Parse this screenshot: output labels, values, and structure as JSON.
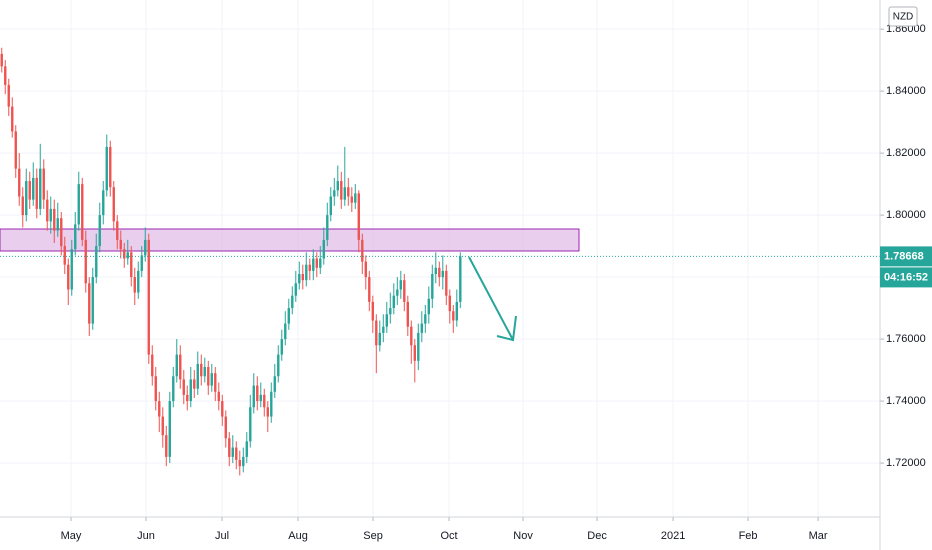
{
  "chart_data": {
    "type": "candlestick",
    "currency": "NZD",
    "up_color": "#26a69a",
    "down_color": "#ef5350",
    "xlim": [
      -0.5,
      250.9
    ],
    "xticks": [
      {
        "value": 19.79,
        "label": "May"
      },
      {
        "value": 41.2,
        "label": "Jun"
      },
      {
        "value": 62.93,
        "label": "Jul"
      },
      {
        "value": 84.64,
        "label": "Aug"
      },
      {
        "value": 106.07,
        "label": "Sep"
      },
      {
        "value": 127.79,
        "label": "Oct"
      },
      {
        "value": 148.93,
        "label": "Nov"
      },
      {
        "value": 170.07,
        "label": "Dec"
      },
      {
        "value": 191.79,
        "label": "2021"
      },
      {
        "value": 213.21,
        "label": "Feb"
      },
      {
        "value": 233.21,
        "label": "Mar"
      }
    ],
    "ylim": [
      1.7026,
      1.8694
    ],
    "yticks": [
      {
        "value": 1.86,
        "label": "1.86000"
      },
      {
        "value": 1.84,
        "label": "1.84000"
      },
      {
        "value": 1.82,
        "label": "1.82000"
      },
      {
        "value": 1.8,
        "label": "1.80000"
      },
      {
        "value": 1.78,
        "label": "1.78000"
      },
      {
        "value": 1.76,
        "label": "1.76000"
      },
      {
        "value": 1.74,
        "label": "1.74000"
      },
      {
        "value": 1.72,
        "label": "1.72000"
      }
    ],
    "grid": true,
    "last_price": 1.78668,
    "countdown": "04:16:52",
    "open": [
      1.852,
      1.848,
      1.842,
      1.835,
      1.827,
      1.815,
      1.806,
      1.8,
      1.811,
      1.805,
      1.812,
      1.802,
      1.815,
      1.805,
      1.798,
      1.802,
      1.795,
      1.799,
      1.79,
      1.784,
      1.776,
      1.789,
      1.797,
      1.81,
      1.792,
      1.778,
      1.765,
      1.78,
      1.79,
      1.8,
      1.808,
      1.822,
      1.809,
      1.798,
      1.792,
      1.789,
      1.786,
      1.788,
      1.78,
      1.775,
      1.782,
      1.787,
      1.792,
      1.755,
      1.748,
      1.74,
      1.735,
      1.729,
      1.722,
      1.74,
      1.748,
      1.755,
      1.747,
      1.742,
      1.74,
      1.747,
      1.744,
      1.752,
      1.748,
      1.751,
      1.745,
      1.749,
      1.743,
      1.74,
      1.735,
      1.728,
      1.722,
      1.725,
      1.721,
      1.719,
      1.722,
      1.727,
      1.738,
      1.745,
      1.74,
      1.742,
      1.738,
      1.735,
      1.743,
      1.748,
      1.755,
      1.76,
      1.765,
      1.77,
      1.774,
      1.778,
      1.781,
      1.779,
      1.784,
      1.782,
      1.786,
      1.783,
      1.786,
      1.792,
      1.8,
      1.806,
      1.808,
      1.811,
      1.805,
      1.809,
      1.806,
      1.804,
      1.807,
      1.792,
      1.785,
      1.78,
      1.772,
      1.766,
      1.758,
      1.762,
      1.764,
      1.768,
      1.77,
      1.774,
      1.776,
      1.779,
      1.772,
      1.764,
      1.758,
      1.753,
      1.762,
      1.765,
      1.768,
      1.773,
      1.781,
      1.783,
      1.78,
      1.782,
      1.774,
      1.769,
      1.766,
      1.772
    ],
    "high": [
      1.854,
      1.85,
      1.844,
      1.838,
      1.829,
      1.82,
      1.809,
      1.815,
      1.814,
      1.817,
      1.815,
      1.823,
      1.818,
      1.808,
      1.806,
      1.805,
      1.804,
      1.801,
      1.793,
      1.786,
      1.792,
      1.801,
      1.814,
      1.812,
      1.795,
      1.78,
      1.783,
      1.794,
      1.804,
      1.811,
      1.826,
      1.824,
      1.811,
      1.8,
      1.795,
      1.791,
      1.792,
      1.79,
      1.783,
      1.785,
      1.79,
      1.796,
      1.794,
      1.758,
      1.751,
      1.743,
      1.738,
      1.732,
      1.743,
      1.751,
      1.76,
      1.758,
      1.75,
      1.745,
      1.751,
      1.75,
      1.756,
      1.755,
      1.754,
      1.753,
      1.752,
      1.751,
      1.746,
      1.742,
      1.737,
      1.73,
      1.729,
      1.727,
      1.724,
      1.725,
      1.73,
      1.742,
      1.749,
      1.748,
      1.746,
      1.744,
      1.74,
      1.746,
      1.752,
      1.758,
      1.763,
      1.769,
      1.773,
      1.777,
      1.782,
      1.785,
      1.784,
      1.788,
      1.786,
      1.789,
      1.788,
      1.79,
      1.796,
      1.804,
      1.809,
      1.812,
      1.816,
      1.814,
      1.822,
      1.812,
      1.809,
      1.81,
      1.808,
      1.794,
      1.787,
      1.782,
      1.774,
      1.768,
      1.766,
      1.768,
      1.772,
      1.775,
      1.778,
      1.78,
      1.782,
      1.781,
      1.774,
      1.766,
      1.76,
      1.765,
      1.769,
      1.771,
      1.777,
      1.784,
      1.788,
      1.785,
      1.787,
      1.784,
      1.776,
      1.771,
      1.776,
      1.788
    ],
    "low": [
      1.846,
      1.839,
      1.832,
      1.825,
      1.812,
      1.803,
      1.796,
      1.798,
      1.802,
      1.803,
      1.799,
      1.8,
      1.802,
      1.795,
      1.794,
      1.791,
      1.793,
      1.787,
      1.781,
      1.771,
      1.774,
      1.787,
      1.795,
      1.79,
      1.775,
      1.761,
      1.763,
      1.778,
      1.788,
      1.797,
      1.806,
      1.806,
      1.795,
      1.789,
      1.786,
      1.783,
      1.784,
      1.777,
      1.771,
      1.773,
      1.78,
      1.785,
      1.752,
      1.745,
      1.737,
      1.73,
      1.725,
      1.719,
      1.72,
      1.738,
      1.746,
      1.744,
      1.739,
      1.737,
      1.738,
      1.741,
      1.742,
      1.745,
      1.746,
      1.742,
      1.743,
      1.74,
      1.737,
      1.732,
      1.725,
      1.719,
      1.72,
      1.718,
      1.716,
      1.717,
      1.72,
      1.725,
      1.736,
      1.737,
      1.738,
      1.735,
      1.73,
      1.733,
      1.741,
      1.746,
      1.753,
      1.758,
      1.763,
      1.768,
      1.772,
      1.776,
      1.776,
      1.777,
      1.779,
      1.779,
      1.78,
      1.781,
      1.784,
      1.79,
      1.798,
      1.803,
      1.806,
      1.802,
      1.803,
      1.803,
      1.801,
      1.802,
      1.788,
      1.781,
      1.776,
      1.769,
      1.762,
      1.749,
      1.756,
      1.759,
      1.762,
      1.765,
      1.768,
      1.771,
      1.773,
      1.769,
      1.761,
      1.752,
      1.746,
      1.75,
      1.759,
      1.762,
      1.765,
      1.77,
      1.778,
      1.777,
      1.776,
      1.771,
      1.765,
      1.762,
      1.764,
      1.77
    ],
    "close": [
      1.848,
      1.842,
      1.835,
      1.827,
      1.815,
      1.806,
      1.8,
      1.811,
      1.805,
      1.812,
      1.802,
      1.815,
      1.805,
      1.798,
      1.802,
      1.795,
      1.799,
      1.79,
      1.784,
      1.776,
      1.789,
      1.797,
      1.81,
      1.792,
      1.778,
      1.765,
      1.78,
      1.79,
      1.8,
      1.808,
      1.822,
      1.809,
      1.798,
      1.792,
      1.789,
      1.786,
      1.788,
      1.78,
      1.775,
      1.782,
      1.787,
      1.792,
      1.755,
      1.748,
      1.74,
      1.735,
      1.729,
      1.722,
      1.74,
      1.748,
      1.755,
      1.747,
      1.742,
      1.74,
      1.747,
      1.744,
      1.752,
      1.748,
      1.751,
      1.745,
      1.749,
      1.743,
      1.74,
      1.735,
      1.728,
      1.722,
      1.725,
      1.721,
      1.719,
      1.722,
      1.727,
      1.738,
      1.745,
      1.74,
      1.742,
      1.738,
      1.735,
      1.743,
      1.748,
      1.755,
      1.76,
      1.765,
      1.77,
      1.774,
      1.778,
      1.781,
      1.779,
      1.784,
      1.782,
      1.786,
      1.783,
      1.786,
      1.792,
      1.8,
      1.806,
      1.808,
      1.811,
      1.805,
      1.809,
      1.806,
      1.804,
      1.807,
      1.792,
      1.785,
      1.78,
      1.772,
      1.766,
      1.758,
      1.762,
      1.764,
      1.768,
      1.77,
      1.774,
      1.776,
      1.779,
      1.772,
      1.764,
      1.758,
      1.753,
      1.762,
      1.765,
      1.768,
      1.773,
      1.781,
      1.783,
      1.78,
      1.782,
      1.774,
      1.769,
      1.766,
      1.772,
      1.78668
    ]
  }
}
